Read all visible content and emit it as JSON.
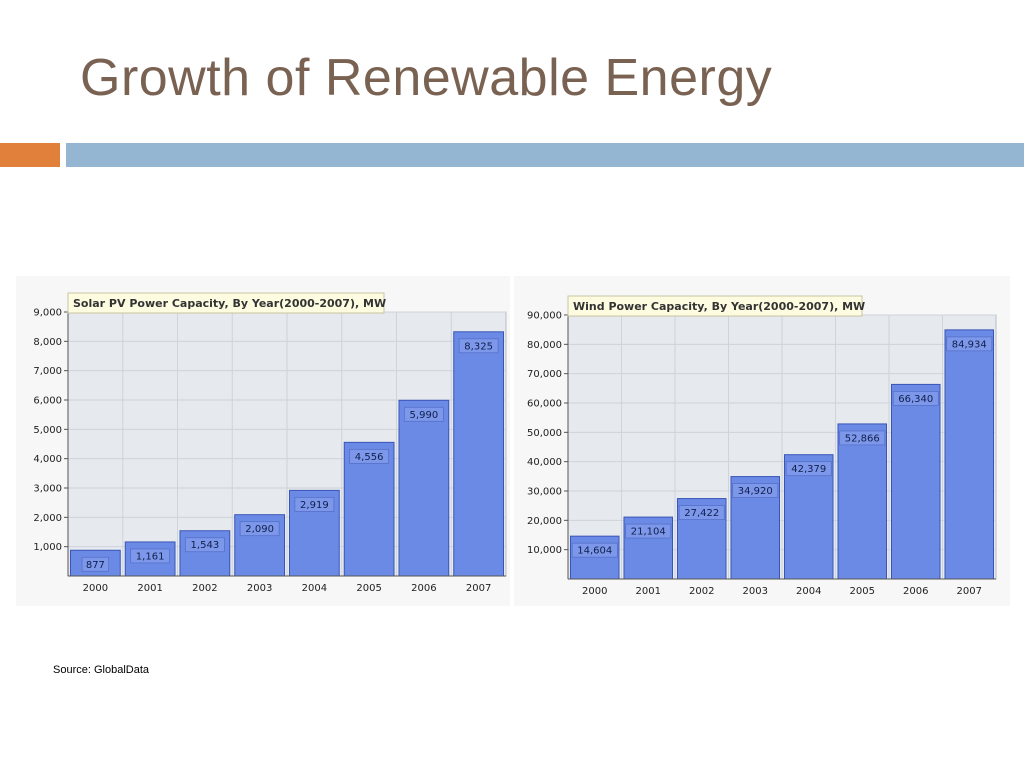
{
  "slide": {
    "title": "Growth of Renewable Energy",
    "source": "Source: GlobalData"
  },
  "colors": {
    "title": "#7a6253",
    "accent_orange": "#e0803b",
    "accent_blue": "#94b6d2",
    "bar_fill": "#6b8ae6",
    "bar_stroke": "#3a55b5",
    "plot_bg": "#e6e9ee",
    "title_box": "#fdfbe0"
  },
  "chart_data": [
    {
      "type": "bar",
      "title": "Solar PV Power Capacity, By Year(2000-2007), MW",
      "categories": [
        "2000",
        "2001",
        "2002",
        "2003",
        "2004",
        "2005",
        "2006",
        "2007"
      ],
      "values": [
        877,
        1161,
        1543,
        2090,
        2919,
        4556,
        5990,
        8325
      ],
      "value_labels": [
        "877",
        "1,161",
        "1,543",
        "2,090",
        "2,919",
        "4,556",
        "5,990",
        "8,325"
      ],
      "yticks": [
        "1,000",
        "2,000",
        "3,000",
        "4,000",
        "5,000",
        "6,000",
        "7,000",
        "8,000",
        "9,000"
      ],
      "ytick_values": [
        1000,
        2000,
        3000,
        4000,
        5000,
        6000,
        7000,
        8000,
        9000
      ],
      "ylim": [
        0,
        9000
      ],
      "grid": true
    },
    {
      "type": "bar",
      "title": "Wind Power Capacity, By Year(2000-2007), MW",
      "categories": [
        "2000",
        "2001",
        "2002",
        "2003",
        "2004",
        "2005",
        "2006",
        "2007"
      ],
      "values": [
        14604,
        21104,
        27422,
        34920,
        42379,
        52866,
        66340,
        84934
      ],
      "value_labels": [
        "14,604",
        "21,104",
        "27,422",
        "34,920",
        "42,379",
        "52,866",
        "66,340",
        "84,934"
      ],
      "yticks": [
        "10,000",
        "20,000",
        "30,000",
        "40,000",
        "50,000",
        "60,000",
        "70,000",
        "80,000",
        "90,000"
      ],
      "ytick_values": [
        10000,
        20000,
        30000,
        40000,
        50000,
        60000,
        70000,
        80000,
        90000
      ],
      "ylim": [
        0,
        90000
      ],
      "grid": true
    }
  ]
}
